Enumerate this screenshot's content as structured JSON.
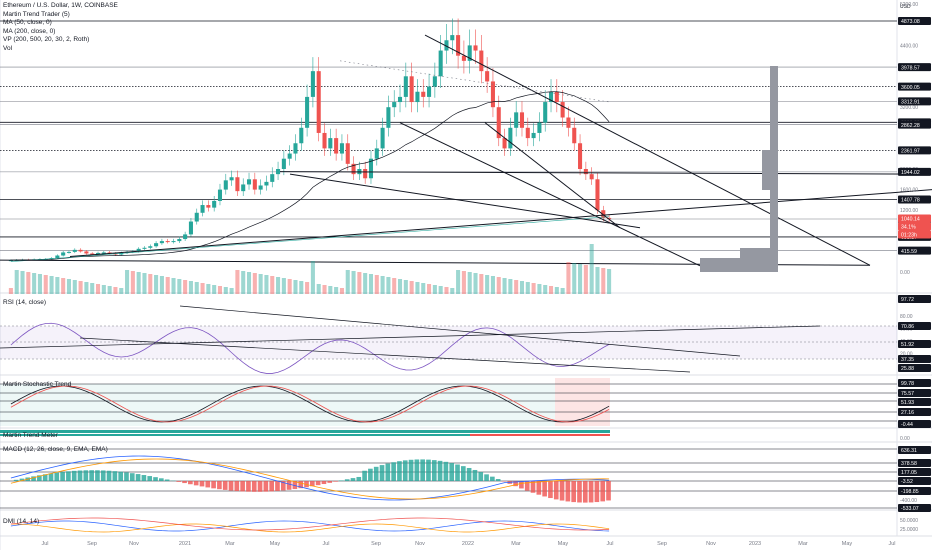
{
  "legend": {
    "symbol": "Ethereum / U.S. Dollar, 1W, COINBASE",
    "ind1": "Martin Trend Trader (5)",
    "ind2": "MA (50, close, 0)",
    "ind3": "MA (200, close, 0)",
    "ind4": "VP (200, 500, 20, 30, 2, Roth)",
    "ind5": "Vol"
  },
  "currency": "USD",
  "pane_labels": {
    "rsi": "RSI (14, close)",
    "stoch": "Martin Stochastic Trend",
    "meter": "Martin Trend Meter",
    "macd": "MACD (12, 26, close, 9, EMA, EMA)",
    "dmi": "DMI (14, 14)"
  },
  "x_axis": [
    "Jul",
    "Sep",
    "Nov",
    "2021",
    "Mar",
    "May",
    "Jul",
    "Sep",
    "Nov",
    "2022",
    "Mar",
    "May",
    "Jul",
    "Sep",
    "Nov",
    "2023",
    "Mar",
    "May",
    "Jul"
  ],
  "price_axis_ticks": [
    "5200.00",
    "4400.00",
    "3200.00",
    "2000.00",
    "1600.00",
    "1200.00",
    "800.00",
    "400.00",
    "0.00"
  ],
  "price_levels": [
    "4873.08",
    "3978.57",
    "3600.05",
    "3312.91",
    "2906.09",
    "2862.28",
    "2361.97",
    "1944.02",
    "1407.78",
    "1029.04",
    "681.17",
    "415.59"
  ],
  "price_current": {
    "price": "1040.14",
    "change": "34.1%",
    "countdown": "01:23h"
  },
  "rsi_axis": {
    "ticks": [
      "80.00",
      "60.00",
      "40.00",
      "20.00"
    ],
    "labels": [
      "97.72",
      "70.86",
      "51.92",
      "37.35",
      "25.88"
    ]
  },
  "stoch_axis": {
    "labels": [
      "99.78",
      "75.57",
      "51.93",
      "27.16",
      "-0.44"
    ],
    "tick": "0.00"
  },
  "macd_axis": {
    "labels": [
      "636.31",
      "378.58",
      "177.05",
      "-3.52",
      "-198.85",
      "-533.07"
    ],
    "ticks": [
      "-400.00"
    ]
  },
  "dmi_axis": {
    "ticks": [
      "50.0000",
      "25.0000"
    ]
  },
  "colors": {
    "up": "#26a69a",
    "down": "#ef5350",
    "rsi": "#7e57c2",
    "profile": "#9598a1"
  },
  "chart_data": {
    "type": "line",
    "title": "Ethereum / U.S. Dollar, 1W, COINBASE",
    "x": [
      "2020-06",
      "2020-08",
      "2020-10",
      "2020-12",
      "2021-01",
      "2021-03",
      "2021-05",
      "2021-07",
      "2021-09",
      "2021-11",
      "2022-01",
      "2022-03",
      "2022-05",
      "2022-06"
    ],
    "series": [
      {
        "name": "Ethereum / U.S. Dollar",
        "values": [
          230,
          390,
          380,
          580,
          1300,
          1800,
          3900,
          2300,
          3400,
          4800,
          3300,
          3400,
          2000,
          1040
        ]
      }
    ],
    "ylabel": "USD",
    "ylim": [
      0,
      5200
    ]
  }
}
